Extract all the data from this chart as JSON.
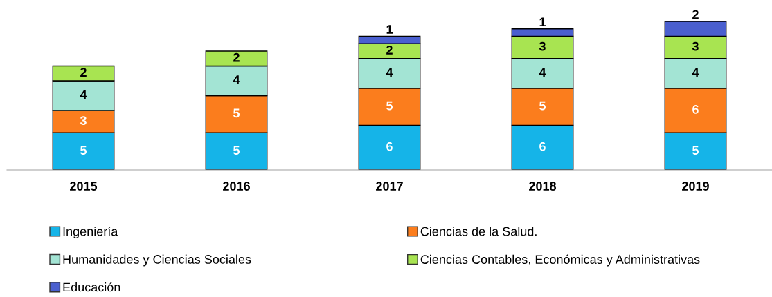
{
  "chart_data": {
    "type": "bar",
    "stacked": true,
    "data_labels": true,
    "legend": "bottom",
    "grid": false,
    "categories": [
      "2015",
      "2016",
      "2017",
      "2018",
      "2019"
    ],
    "series": [
      {
        "name": "Ingeniería",
        "color": "#15b4e8",
        "values": [
          5,
          5,
          6,
          6,
          5
        ]
      },
      {
        "name": "Ciencias de la Salud.",
        "color": "#fb7d1d",
        "values": [
          3,
          5,
          5,
          5,
          6
        ]
      },
      {
        "name": "Humanidades y Ciencias Sociales",
        "color": "#a3e4d4",
        "values": [
          4,
          4,
          4,
          4,
          4
        ]
      },
      {
        "name": "Ciencias Contables, Económicas y Administrativas",
        "color": "#a8e451",
        "values": [
          2,
          2,
          2,
          3,
          3
        ]
      },
      {
        "name": "Educación",
        "color": "#4a5fcf",
        "values": [
          null,
          null,
          1,
          1,
          2
        ]
      }
    ]
  }
}
